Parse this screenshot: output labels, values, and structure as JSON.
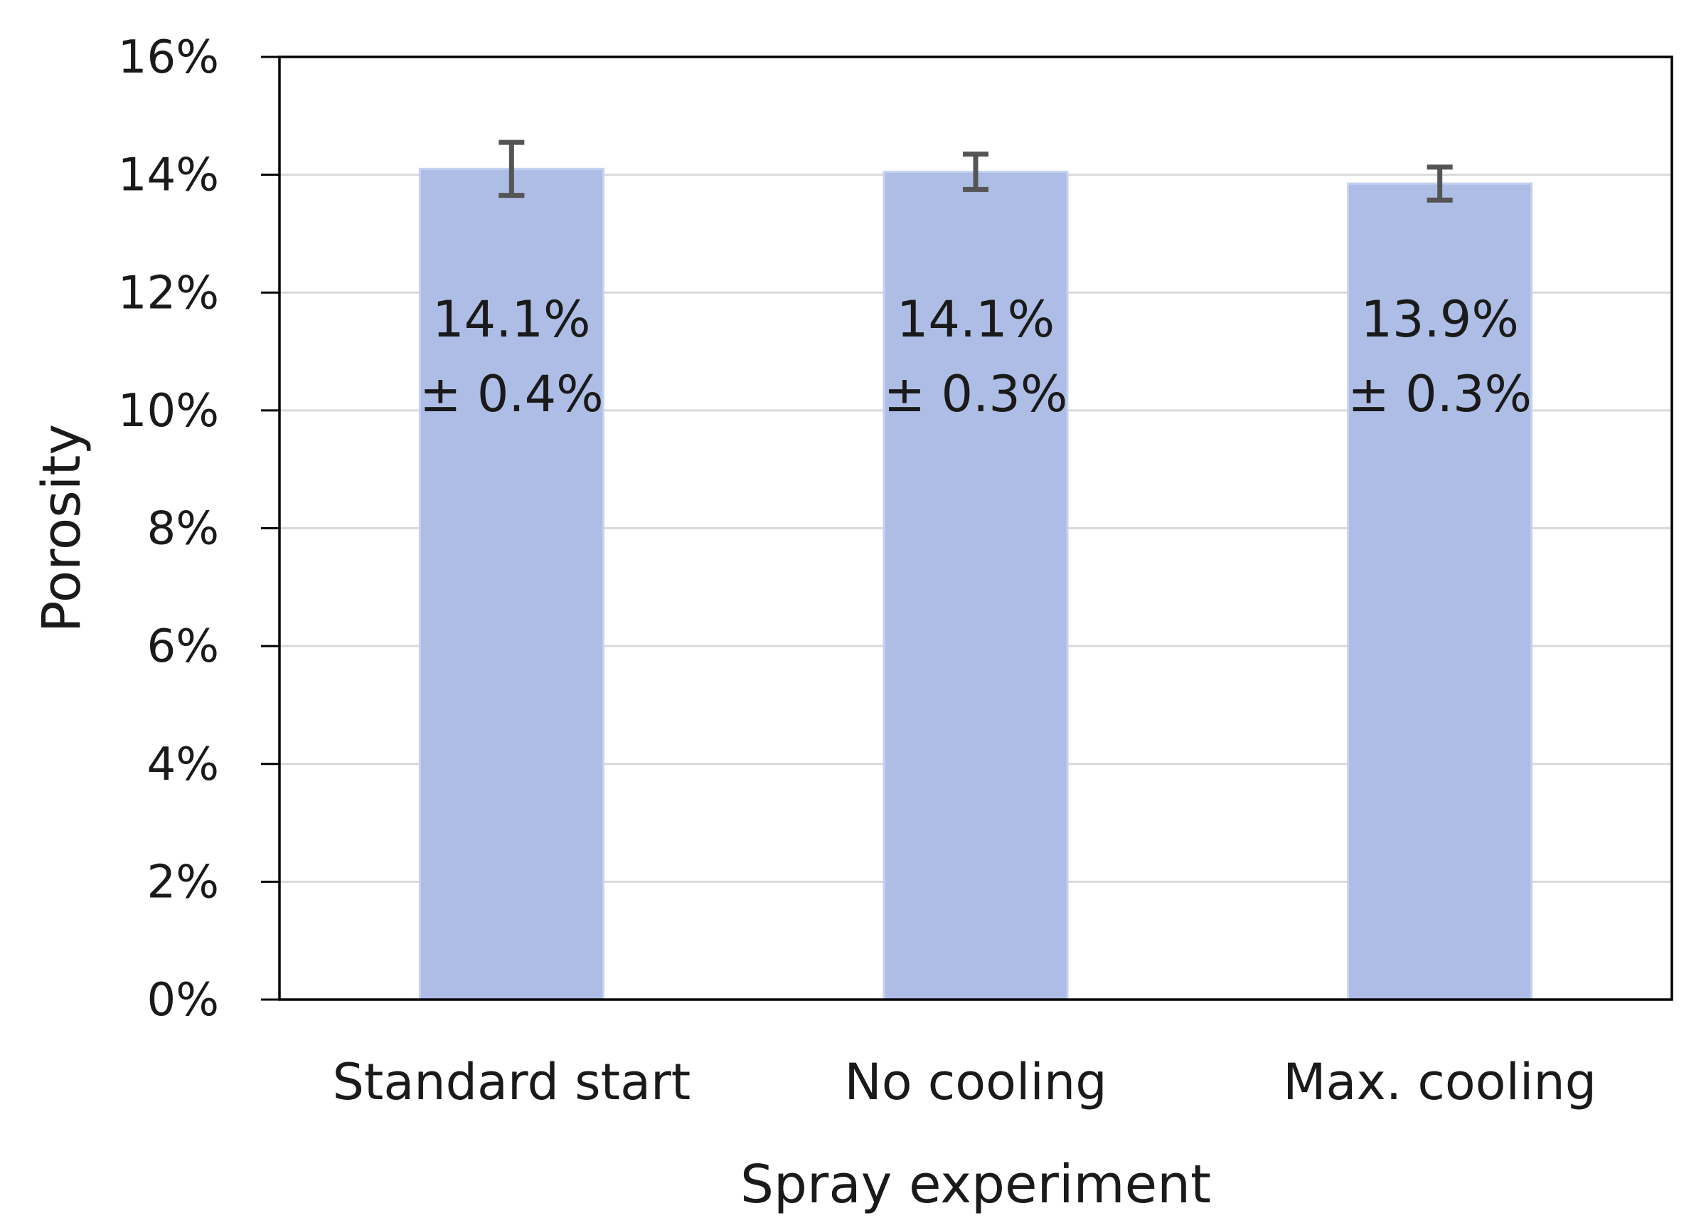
{
  "chart_data": {
    "type": "bar",
    "title": "",
    "xlabel": "Spray experiment",
    "ylabel": "Porosity",
    "categories": [
      "Standard start",
      "No cooling",
      "Max. cooling"
    ],
    "values": [
      14.1,
      14.05,
      13.85
    ],
    "errors": [
      0.45,
      0.3,
      0.28
    ],
    "value_labels": [
      "14.1%",
      "14.1%",
      "13.9%"
    ],
    "error_labels": [
      "± 0.4%",
      "± 0.3%",
      "± 0.3%"
    ],
    "ylim": [
      0,
      16
    ],
    "yticks": [
      0,
      2,
      4,
      6,
      8,
      10,
      12,
      14,
      16
    ],
    "ytick_labels": [
      "0%",
      "2%",
      "4%",
      "6%",
      "8%",
      "10%",
      "12%",
      "14%",
      "16%"
    ],
    "grid": true,
    "legend": "none",
    "colors": {
      "bar": "#aebde5",
      "bar_edge": "#c5d2f0",
      "error_bar": "#555555",
      "grid": "#d9d9d9",
      "axis": "#000000",
      "text": "#1a1a1a"
    }
  }
}
